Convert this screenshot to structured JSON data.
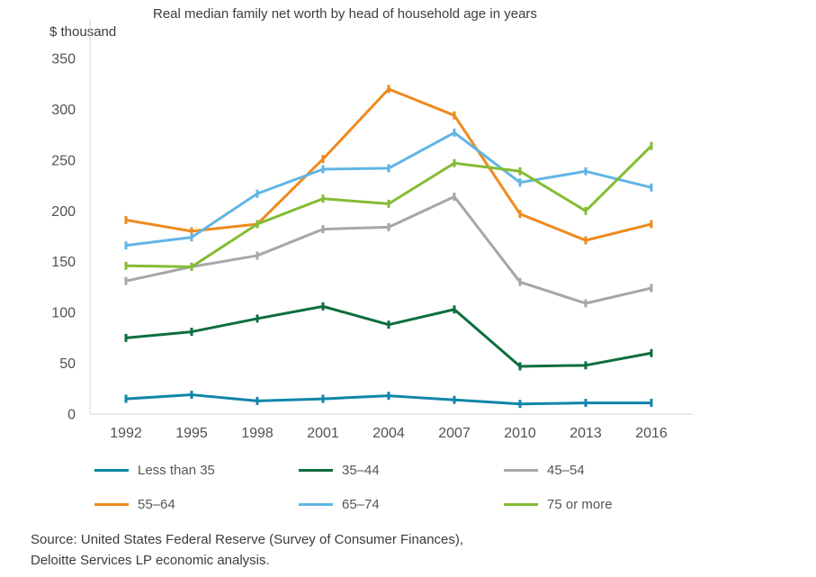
{
  "chart_data": {
    "type": "line",
    "title": "Real median family net worth by head of household age in years",
    "ylabel": "$ thousand",
    "xlabel": "",
    "x": [
      "1992",
      "1995",
      "1998",
      "2001",
      "2004",
      "2007",
      "2010",
      "2013",
      "2016"
    ],
    "ylim": [
      0,
      350
    ],
    "ytick_step": 50,
    "grid": false,
    "legend_position": "bottom",
    "axis_color": "#d6d6d6",
    "series": [
      {
        "name": "Less than 35",
        "color": "#0f86a9",
        "values": [
          15,
          19,
          13,
          15,
          18,
          14,
          10,
          11,
          11
        ]
      },
      {
        "name": "35–44",
        "color": "#0d6e3d",
        "values": [
          75,
          81,
          94,
          106,
          88,
          103,
          47,
          48,
          60
        ]
      },
      {
        "name": "45–54",
        "color": "#a6a7a9",
        "values": [
          131,
          145,
          156,
          182,
          184,
          214,
          130,
          109,
          124
        ]
      },
      {
        "name": "55–64",
        "color": "#ee8a1f",
        "values": [
          191,
          180,
          187,
          251,
          320,
          294,
          197,
          171,
          187
        ]
      },
      {
        "name": "65–74",
        "color": "#62b5e5",
        "values": [
          166,
          174,
          217,
          241,
          242,
          277,
          228,
          239,
          223
        ]
      },
      {
        "name": "75 or more",
        "color": "#84bc34",
        "values": [
          146,
          145,
          187,
          212,
          207,
          247,
          239,
          200,
          264
        ]
      }
    ]
  },
  "source": {
    "line1": "Source: United States Federal Reserve (Survey of Consumer Finances),",
    "line2": "Deloitte Services LP economic analysis."
  }
}
